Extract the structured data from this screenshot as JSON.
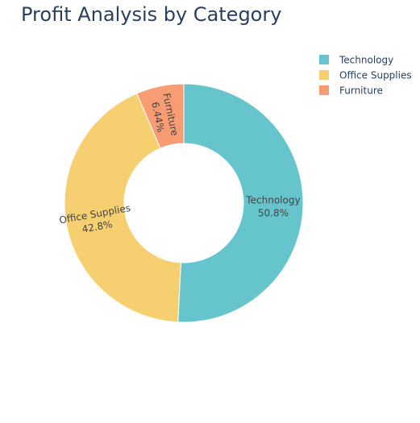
{
  "chart_data": {
    "type": "pie",
    "hole": 0.5,
    "title": "Profit Analysis by Category",
    "categories": [
      "Technology",
      "Office Supplies",
      "Furniture"
    ],
    "values": [
      50.8,
      42.8,
      6.44
    ],
    "percent_labels": [
      "50.8%",
      "42.8%",
      "6.44%"
    ],
    "colors": [
      "#66c5cc",
      "#f6cf71",
      "#f89c74"
    ],
    "direction": "clockwise",
    "start_angle": "top",
    "legend": {
      "placement": "top-right",
      "entries": [
        "Technology",
        "Office Supplies",
        "Furniture"
      ]
    }
  }
}
